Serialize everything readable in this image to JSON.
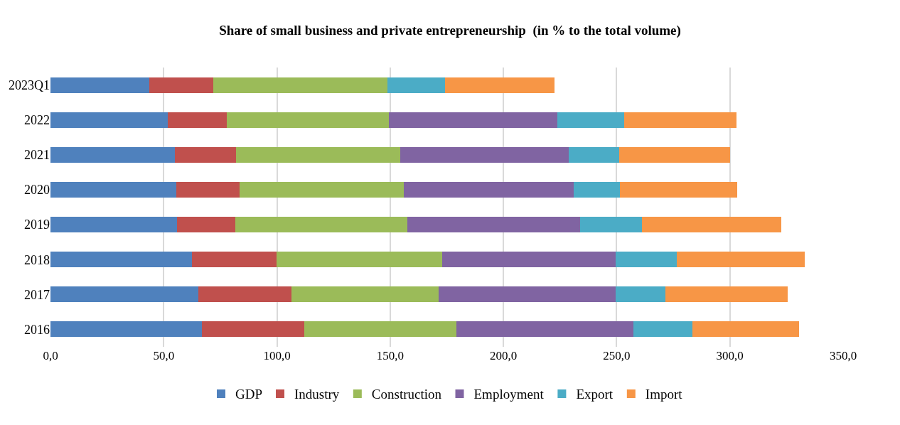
{
  "chart_data": {
    "type": "bar",
    "orientation": "horizontal",
    "stacked": true,
    "title": "Share of small business and private entrepreneurship  (in % to the total volume)",
    "categories": [
      "2023Q1",
      "2022",
      "2021",
      "2020",
      "2019",
      "2018",
      "2017",
      "2016"
    ],
    "series": [
      {
        "name": "GDP",
        "color": "#4f81bd",
        "values": [
          43.6,
          51.8,
          54.8,
          55.7,
          55.9,
          62.4,
          65.4,
          66.8
        ]
      },
      {
        "name": "Industry",
        "color": "#c0504d",
        "values": [
          28.3,
          25.9,
          27.2,
          27.9,
          25.8,
          37.3,
          41.1,
          45.3
        ]
      },
      {
        "name": "Construction",
        "color": "#9bbb59",
        "values": [
          76.9,
          71.7,
          72.4,
          72.5,
          75.9,
          73.3,
          64.9,
          67.0
        ]
      },
      {
        "name": "Employment",
        "color": "#8064a2",
        "values": [
          null,
          74.4,
          74.5,
          74.8,
          76.4,
          76.5,
          78.1,
          78.3
        ]
      },
      {
        "name": "Export",
        "color": "#4bacc6",
        "values": [
          25.3,
          29.6,
          22.3,
          20.5,
          27.1,
          27.2,
          22.1,
          26.0
        ]
      },
      {
        "name": "Import",
        "color": "#f79646",
        "values": [
          48.5,
          49.5,
          48.8,
          51.9,
          61.6,
          56.3,
          53.8,
          47.0
        ]
      }
    ],
    "xlim": [
      0,
      350
    ],
    "xticks": [
      {
        "value": 0,
        "label": "0,0"
      },
      {
        "value": 50,
        "label": "50,0"
      },
      {
        "value": 100,
        "label": "100,0"
      },
      {
        "value": 150,
        "label": "150,0"
      },
      {
        "value": 200,
        "label": "200,0"
      },
      {
        "value": 250,
        "label": "250,0"
      },
      {
        "value": 300,
        "label": "300,0"
      },
      {
        "value": 350,
        "label": "350,0"
      }
    ],
    "grid": "x",
    "legend": "bottom"
  }
}
